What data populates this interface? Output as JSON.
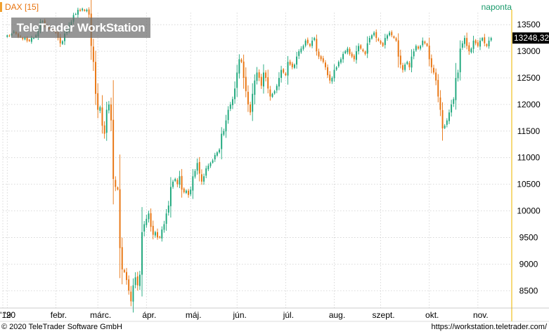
{
  "header": {
    "symbol": "DAX [15]",
    "interval": "naponta",
    "watermark": "TeleTrader WorkStation"
  },
  "footer": {
    "copyright": "© 2020 TeleTrader Software GmbH",
    "url": "https://workstation.teletrader.com/"
  },
  "colors": {
    "up": "#1aa67a",
    "down": "#e8720c",
    "grid": "#cfcfcf",
    "price_tag_bg": "#000000",
    "price_tag_text": "#ffffff",
    "axis_line": "#f0c020"
  },
  "chart_data": {
    "type": "candlestick",
    "title": "DAX [15]",
    "interval": "naponta",
    "last_price_label": "13248,32",
    "y_ticks": [
      8500,
      9000,
      9500,
      10000,
      10500,
      11000,
      11500,
      12000,
      12500,
      13000,
      13500
    ],
    "y_tick_labels": [
      "8500",
      "9000",
      "9500",
      "10000",
      "10500",
      "11000",
      "11500",
      "12000",
      "12500",
      "13000",
      "13500"
    ],
    "ylim": [
      8200,
      13700
    ],
    "x_labels": [
      "'19",
      "'20",
      "febr.",
      "márc.",
      "ápr.",
      "máj.",
      "jún.",
      "júl.",
      "aug.",
      "szept.",
      "okt.",
      "nov."
    ],
    "x_label_index": [
      -2,
      0,
      22,
      41,
      63,
      83,
      104,
      126,
      148,
      169,
      191,
      213
    ],
    "first_day_index": -2,
    "last_day_index": 228,
    "grid": true,
    "series": [
      {
        "closes": [
          13300,
          13290,
          13330,
          13370,
          13330,
          13270,
          13270,
          13230,
          13250,
          13200,
          13190,
          13250,
          13250,
          13300,
          13400,
          13550,
          13560,
          13500,
          13450,
          13420,
          13420,
          13390,
          13350,
          13250,
          13150,
          13190,
          13330,
          13400,
          13480,
          13550,
          13680,
          13700,
          13780,
          13760,
          13800,
          13760,
          13780,
          13690,
          13100,
          12800,
          12200,
          11900,
          11950,
          11600,
          11450,
          11900,
          12000,
          11700,
          10600,
          10450,
          10400,
          9300,
          8900,
          8850,
          8700,
          8500,
          8300,
          8600,
          8750,
          8600,
          8800,
          9600,
          9750,
          9850,
          9950,
          9700,
          9550,
          9600,
          9500,
          9500,
          9650,
          9750,
          9950,
          10100,
          10450,
          10550,
          10600,
          10500,
          10650,
          10400,
          10350,
          10380,
          10300,
          10400,
          10650,
          10750,
          10900,
          10700,
          10550,
          10650,
          10800,
          10850,
          10900,
          10950,
          11050,
          11100,
          11150,
          11450,
          11500,
          11700,
          11900,
          12000,
          12100,
          12300,
          12600,
          12850,
          12800,
          12500,
          12250,
          12000,
          11850,
          12200,
          12450,
          12600,
          12500,
          12350,
          12600,
          12500,
          12300,
          12150,
          12200,
          12250,
          12350,
          12500,
          12650,
          12600,
          12550,
          12800,
          12750,
          12700,
          12750,
          12900,
          13000,
          13050,
          13100,
          13200,
          13150,
          13100,
          13200,
          13250,
          13000,
          12900,
          12850,
          12800,
          12700,
          12550,
          12450,
          12500,
          12650,
          12700,
          12800,
          12850,
          12950,
          13000,
          13050,
          12950,
          12900,
          12850,
          13000,
          13100,
          13050,
          13000,
          12950,
          13150,
          13250,
          13300,
          13350,
          13250,
          13200,
          13150,
          13100,
          13250,
          13300,
          13350,
          13300,
          13250,
          13200,
          12900,
          12750,
          12650,
          12750,
          12800,
          12700,
          12900,
          13000,
          13100,
          13050,
          13100,
          13200,
          13150,
          13100,
          12850,
          12700,
          12600,
          12450,
          12150,
          11900,
          11550,
          11600,
          11700,
          11850,
          12000,
          12100,
          12500,
          12600,
          13050,
          13150,
          13250,
          13100,
          13000,
          13050,
          13200,
          13150,
          13100,
          13200,
          13250,
          13150,
          13100,
          13200,
          13249
        ]
      }
    ]
  }
}
